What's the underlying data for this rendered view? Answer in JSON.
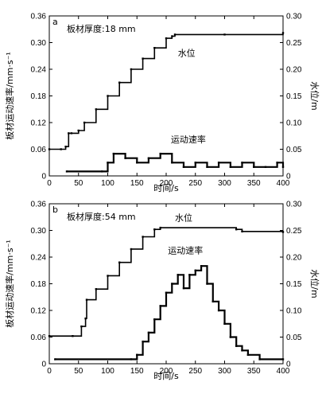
{
  "chart_data": [
    {
      "type": "line",
      "panel_label": "a",
      "annotation": "板材厚度:18 mm",
      "xlabel": "时间/s",
      "ylabel_left": "板材运动速率/mm·s⁻¹",
      "ylabel_right": "水位/m",
      "xlim": [
        0,
        400
      ],
      "ylim_left": [
        0,
        0.36
      ],
      "ylim_right": [
        0,
        0.3
      ],
      "x_ticks": [
        "0",
        "50",
        "100",
        "150",
        "200",
        "250",
        "300",
        "350",
        "400"
      ],
      "y_ticks_left": [
        "0",
        "0.06",
        "0.12",
        "0.18",
        "0.24",
        "0.30",
        "0.36"
      ],
      "y_ticks_right": [
        "0",
        "0.05",
        "0.10",
        "0.15",
        "0.20",
        "0.25",
        "0.30"
      ],
      "series": [
        {
          "name": "水位",
          "axis": "right",
          "x": [
            0,
            20,
            28,
            33,
            38,
            50,
            60,
            80,
            100,
            120,
            140,
            160,
            180,
            200,
            210,
            215,
            300,
            400
          ],
          "y": [
            0.05,
            0.05,
            0.055,
            0.08,
            0.08,
            0.085,
            0.1,
            0.125,
            0.15,
            0.175,
            0.2,
            0.22,
            0.24,
            0.258,
            0.262,
            0.265,
            0.265,
            0.268
          ]
        },
        {
          "name": "运动速率",
          "axis": "left",
          "x": [
            30,
            90,
            100,
            110,
            130,
            150,
            170,
            190,
            210,
            230,
            250,
            270,
            290,
            310,
            330,
            350,
            370,
            390,
            400
          ],
          "y": [
            0.01,
            0.01,
            0.03,
            0.05,
            0.04,
            0.03,
            0.04,
            0.05,
            0.03,
            0.02,
            0.03,
            0.02,
            0.03,
            0.02,
            0.03,
            0.02,
            0.02,
            0.03,
            0.02
          ]
        }
      ],
      "series_labels": {
        "water": "水位",
        "rate": "运动速率"
      }
    },
    {
      "type": "line",
      "panel_label": "b",
      "annotation": "板材厚度:54 mm",
      "xlabel": "时间/s",
      "ylabel_left": "板材运动速率/mm·s⁻¹",
      "ylabel_right": "水位/m",
      "xlim": [
        0,
        400
      ],
      "ylim_left": [
        0,
        0.36
      ],
      "ylim_right": [
        0,
        0.3
      ],
      "x_ticks": [
        "0",
        "50",
        "100",
        "150",
        "200",
        "250",
        "300",
        "350",
        "400"
      ],
      "y_ticks_left": [
        "0",
        "0.06",
        "0.12",
        "0.18",
        "0.24",
        "0.30",
        "0.36"
      ],
      "y_ticks_right": [
        "0",
        "0.05",
        "0.10",
        "0.15",
        "0.20",
        "0.25",
        "0.30"
      ],
      "series": [
        {
          "name": "水位",
          "axis": "right",
          "x": [
            0,
            40,
            55,
            62,
            64,
            80,
            100,
            120,
            140,
            160,
            180,
            190,
            320,
            330,
            400
          ],
          "y": [
            0.052,
            0.052,
            0.07,
            0.085,
            0.12,
            0.14,
            0.165,
            0.19,
            0.215,
            0.238,
            0.252,
            0.255,
            0.252,
            0.248,
            0.247
          ]
        },
        {
          "name": "运动速率",
          "axis": "left",
          "x": [
            10,
            140,
            150,
            160,
            170,
            180,
            190,
            200,
            210,
            220,
            230,
            240,
            250,
            260,
            270,
            280,
            290,
            300,
            310,
            320,
            330,
            340,
            360,
            400
          ],
          "y": [
            0.01,
            0.01,
            0.02,
            0.05,
            0.07,
            0.1,
            0.13,
            0.16,
            0.18,
            0.2,
            0.17,
            0.2,
            0.21,
            0.22,
            0.18,
            0.14,
            0.12,
            0.09,
            0.06,
            0.04,
            0.03,
            0.02,
            0.01,
            0.01
          ]
        }
      ],
      "series_labels": {
        "water": "水位",
        "rate": "运动速率"
      }
    }
  ]
}
